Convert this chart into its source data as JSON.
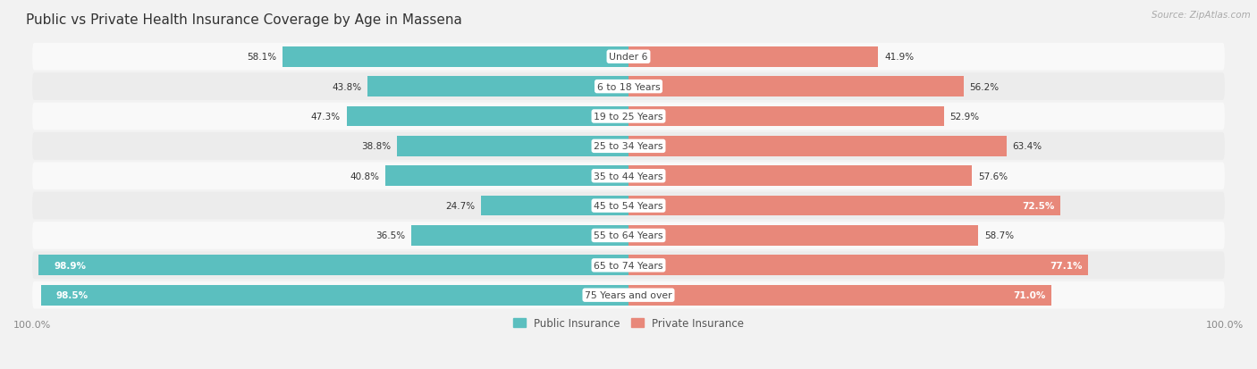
{
  "title": "Public vs Private Health Insurance Coverage by Age in Massena",
  "source": "Source: ZipAtlas.com",
  "categories": [
    "Under 6",
    "6 to 18 Years",
    "19 to 25 Years",
    "25 to 34 Years",
    "35 to 44 Years",
    "45 to 54 Years",
    "55 to 64 Years",
    "65 to 74 Years",
    "75 Years and over"
  ],
  "public": [
    58.1,
    43.8,
    47.3,
    38.8,
    40.8,
    24.7,
    36.5,
    98.9,
    98.5
  ],
  "private": [
    41.9,
    56.2,
    52.9,
    63.4,
    57.6,
    72.5,
    58.7,
    77.1,
    71.0
  ],
  "public_color": "#5bbfbf",
  "private_color": "#e8887a",
  "bg_color": "#f2f2f2",
  "row_light": "#f9f9f9",
  "row_dark": "#ececec",
  "title_color": "#333333",
  "text_dark": "#333333",
  "text_light": "#ffffff",
  "source_color": "#aaaaaa",
  "axis_color": "#888888",
  "legend_public": "Public Insurance",
  "legend_private": "Private Insurance",
  "inside_label_threshold_pub": 80.0,
  "inside_label_threshold_priv": 65.0
}
